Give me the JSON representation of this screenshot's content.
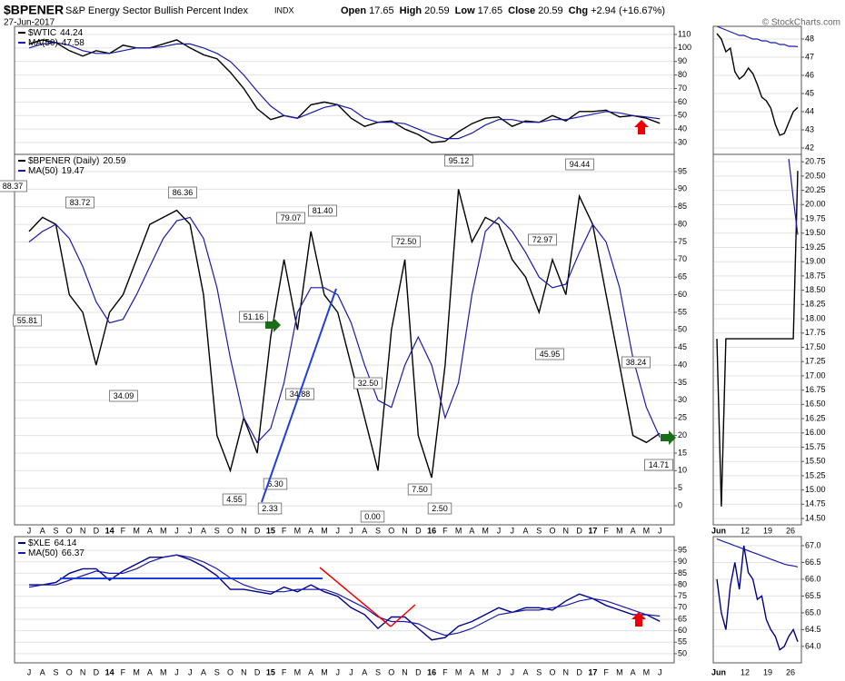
{
  "header": {
    "symbol": "$BPENER",
    "name": "S&P Energy Sector Bullish Percent Index",
    "exchange": "INDX",
    "date": "27-Jun-2017",
    "quote": [
      {
        "label": "Open",
        "value": 17.65
      },
      {
        "label": "High",
        "value": 20.59
      },
      {
        "label": "Low",
        "value": 17.65
      },
      {
        "label": "Close",
        "value": 20.59
      },
      {
        "label": "Chg",
        "value": "+2.94 (+16.67%)"
      }
    ],
    "credit": "© StockCharts.com"
  },
  "chart_data": [
    {
      "type": "line",
      "ylim": [
        21.3,
        116
      ],
      "yticks": [
        30,
        40,
        50,
        60,
        70,
        80,
        90,
        100,
        110
      ],
      "grid": true,
      "series": [
        {
          "name": "$WTIC",
          "last": 44.24,
          "color": "#000000",
          "values": [
            103,
            106,
            104,
            98,
            94,
            98,
            96,
            102,
            100,
            100,
            103,
            106,
            100,
            95,
            92,
            82,
            70,
            55,
            47,
            50,
            48,
            58,
            60,
            58,
            48,
            42,
            45,
            46,
            40,
            36,
            30,
            31,
            38,
            44,
            48,
            49,
            42,
            46,
            45,
            50,
            46,
            53,
            53,
            54,
            49,
            50,
            48,
            44.24
          ]
        },
        {
          "name": "MA(50)",
          "last": 47.58,
          "color": "#1a1aaa",
          "values": [
            100,
            103,
            104,
            102,
            98,
            96,
            96,
            98,
            100,
            100,
            101,
            103,
            103,
            100,
            96,
            90,
            80,
            68,
            57,
            50,
            48,
            52,
            56,
            58,
            55,
            48,
            45,
            45,
            44,
            40,
            36,
            33,
            33,
            37,
            43,
            47,
            47,
            45,
            45,
            47,
            47,
            49,
            51,
            53,
            52,
            50,
            49,
            47.58
          ]
        }
      ]
    },
    {
      "type": "line",
      "ylim": [
        41.65,
        48.7
      ],
      "yticks": [
        42,
        43,
        44,
        45,
        46,
        47,
        48
      ],
      "grid": true,
      "series": [
        {
          "color": "#000000",
          "values": [
            48.3,
            48.0,
            47.3,
            47.5,
            46.2,
            45.8,
            46.0,
            46.4,
            46.1,
            45.5,
            44.8,
            44.6,
            44.2,
            43.3,
            42.7,
            42.8,
            43.4,
            44.0,
            44.24
          ]
        },
        {
          "color": "#1a1aaa",
          "values": [
            48.7,
            48.6,
            48.5,
            48.4,
            48.3,
            48.2,
            48.2,
            48.1,
            48.0,
            48.0,
            47.9,
            47.9,
            47.8,
            47.8,
            47.7,
            47.7,
            47.6,
            47.6,
            47.58
          ]
        }
      ]
    },
    {
      "type": "line",
      "ylim": [
        -5.4,
        99.9
      ],
      "yticks": [
        0,
        5,
        10,
        15,
        20,
        25,
        30,
        35,
        40,
        45,
        50,
        55,
        60,
        65,
        70,
        75,
        80,
        85,
        90,
        95
      ],
      "grid": true,
      "categories": [
        "J",
        "A",
        "S",
        "O",
        "N",
        "D",
        "14",
        "F",
        "M",
        "A",
        "M",
        "J",
        "J",
        "A",
        "S",
        "O",
        "N",
        "D",
        "15",
        "F",
        "M",
        "A",
        "M",
        "J",
        "J",
        "A",
        "S",
        "O",
        "N",
        "D",
        "16",
        "F",
        "M",
        "A",
        "M",
        "J",
        "J",
        "A",
        "S",
        "O",
        "N",
        "D",
        "17",
        "F",
        "M",
        "A",
        "M",
        "J"
      ],
      "annotations": [
        "88.37",
        "55.81",
        "83.72",
        "34.09",
        "86.36",
        "4.55",
        "51.16",
        "2.33",
        "6.30",
        "79.07",
        "34.88",
        "81.40",
        "32.50",
        "0.00",
        "72.50",
        "7.50",
        "2.50",
        "95.12",
        "72.97",
        "45.95",
        "94.44",
        "38.24",
        "14.71"
      ],
      "series": [
        {
          "name": "$BPENER (Daily)",
          "last": 20.59,
          "color": "#000000",
          "values": [
            78,
            82,
            80,
            60,
            55,
            40,
            55,
            60,
            70,
            80,
            82,
            84,
            80,
            60,
            20,
            10,
            25,
            15,
            48,
            70,
            50,
            78,
            60,
            55,
            40,
            25,
            10,
            50,
            70,
            20,
            8,
            40,
            90,
            75,
            82,
            80,
            70,
            65,
            55,
            70,
            60,
            88,
            80,
            60,
            40,
            20,
            18,
            20.59
          ]
        },
        {
          "name": "MA(50)",
          "last": 19.47,
          "color": "#1a1aaa",
          "values": [
            75,
            78,
            80,
            76,
            68,
            58,
            52,
            53,
            60,
            68,
            76,
            81,
            82,
            76,
            62,
            42,
            25,
            18,
            22,
            35,
            55,
            62,
            62,
            60,
            52,
            40,
            30,
            28,
            40,
            48,
            40,
            25,
            35,
            60,
            78,
            82,
            78,
            72,
            65,
            62,
            63,
            72,
            80,
            75,
            62,
            42,
            28,
            19.47
          ]
        }
      ]
    },
    {
      "type": "line",
      "ylim": [
        14.39,
        20.88
      ],
      "grid": true,
      "yticks": [
        {
          "value": 14.5,
          "label": "14.50"
        },
        14.75,
        {
          "value": 15,
          "label": "15.00"
        },
        15.25,
        {
          "value": 15.5,
          "label": "15.50"
        },
        15.75,
        {
          "value": 16,
          "label": "16.00"
        },
        16.25,
        {
          "value": 16.5,
          "label": "16.50"
        },
        16.75,
        {
          "value": 17,
          "label": "17.00"
        },
        17.25,
        {
          "value": 17.5,
          "label": "17.50"
        },
        17.75,
        {
          "value": 18,
          "label": "18.00"
        },
        18.25,
        {
          "value": 18.5,
          "label": "18.50"
        },
        18.75,
        {
          "value": 19,
          "label": "19.00"
        },
        19.25,
        {
          "value": 19.5,
          "label": "19.50"
        },
        19.75,
        {
          "value": 20,
          "label": "20.00"
        },
        20.25,
        {
          "value": 20.5,
          "label": "20.50"
        },
        20.75
      ],
      "xtick_labels": [
        "Jun",
        "12",
        "19",
        "26"
      ],
      "series": [
        {
          "color": "#000000",
          "values": [
            17.65,
            14.71,
            17.65,
            17.65,
            17.65,
            17.65,
            17.65,
            17.65,
            17.65,
            17.65,
            17.65,
            17.65,
            17.65,
            17.65,
            17.65,
            17.65,
            17.65,
            17.65,
            20.59
          ]
        },
        {
          "color": "#1a1aaa",
          "values": [
            null,
            null,
            null,
            null,
            null,
            null,
            null,
            null,
            null,
            null,
            null,
            null,
            null,
            null,
            null,
            null,
            20.8,
            20.1,
            19.47
          ]
        }
      ]
    },
    {
      "type": "line",
      "ylim": [
        46,
        101
      ],
      "yticks": [
        50,
        55,
        60,
        65,
        70,
        75,
        80,
        85,
        90,
        95
      ],
      "grid": true,
      "categories": [
        "J",
        "A",
        "S",
        "O",
        "N",
        "D",
        "14",
        "F",
        "M",
        "A",
        "M",
        "J",
        "J",
        "A",
        "S",
        "O",
        "N",
        "D",
        "15",
        "F",
        "M",
        "A",
        "M",
        "J",
        "J",
        "A",
        "S",
        "O",
        "N",
        "D",
        "16",
        "F",
        "M",
        "A",
        "M",
        "J",
        "J",
        "A",
        "S",
        "O",
        "N",
        "D",
        "17",
        "F",
        "M",
        "A",
        "M",
        "J"
      ],
      "series": [
        {
          "name": "$XLE",
          "last": 64.14,
          "color": "#00008b",
          "values": [
            80,
            80,
            81,
            85,
            87,
            87,
            82,
            86,
            89,
            92,
            92,
            93,
            91,
            88,
            84,
            78,
            78,
            77,
            76,
            79,
            77,
            80,
            77,
            75,
            70,
            67,
            61,
            66,
            66,
            61,
            56,
            57,
            62,
            64,
            67,
            70,
            68,
            70,
            70,
            69,
            73,
            76,
            74,
            71,
            69,
            67,
            67,
            64.14
          ]
        },
        {
          "name": "MA(50)",
          "last": 66.37,
          "color": "#1a1aaa",
          "values": [
            79,
            80,
            80,
            82,
            84,
            86,
            85,
            85,
            87,
            90,
            92,
            93,
            92,
            90,
            87,
            83,
            80,
            78,
            77,
            77,
            78,
            78,
            78,
            76,
            73,
            70,
            66,
            64,
            64,
            63,
            60,
            58,
            59,
            61,
            64,
            67,
            68,
            69,
            69,
            70,
            71,
            73,
            74,
            73,
            71,
            69,
            67,
            66.37
          ]
        }
      ]
    },
    {
      "type": "line",
      "ylim": [
        63.51,
        67.27
      ],
      "grid": true,
      "yticks": [
        {
          "value": 64,
          "label": "64.0"
        },
        64.5,
        {
          "value": 65,
          "label": "65.0"
        },
        65.5,
        {
          "value": 66,
          "label": "66.0"
        },
        66.5,
        {
          "value": 67,
          "label": "67.0"
        }
      ],
      "xtick_labels": [
        "Jun",
        "12",
        "19",
        "26"
      ],
      "series": [
        {
          "color": "#00008b",
          "values": [
            66.0,
            65.0,
            64.5,
            65.8,
            66.5,
            65.7,
            67.0,
            66.2,
            66.0,
            65.4,
            65.5,
            64.8,
            64.5,
            64.3,
            63.9,
            64.0,
            64.3,
            64.5,
            64.14
          ]
        },
        {
          "color": "#1a1aaa",
          "values": [
            67.2,
            67.15,
            67.1,
            67.05,
            67.0,
            66.95,
            66.9,
            66.85,
            66.8,
            66.75,
            66.7,
            66.65,
            66.6,
            66.55,
            66.5,
            66.45,
            66.42,
            66.4,
            66.37
          ]
        }
      ]
    }
  ]
}
